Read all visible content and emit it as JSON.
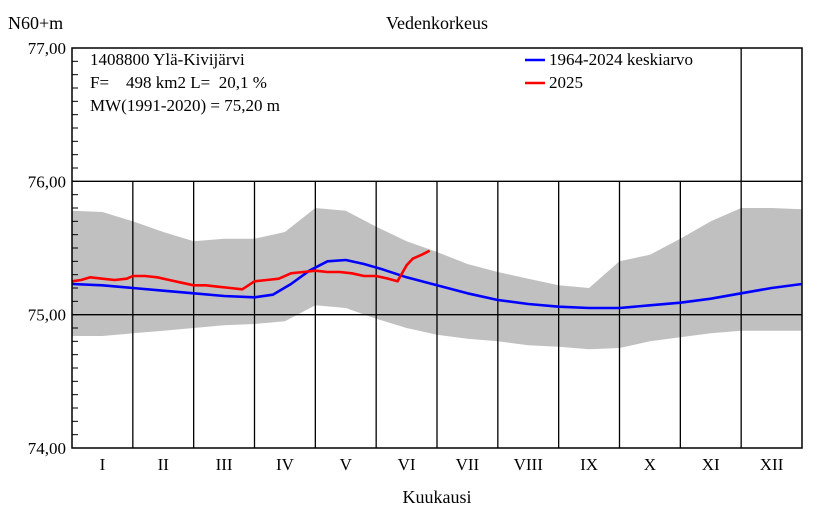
{
  "chart_data": {
    "type": "line",
    "title": "Vedenkorkeus",
    "ylabel": "N60+m",
    "xlabel": "Kuukausi",
    "ylim": [
      74.0,
      77.0
    ],
    "xlim": [
      0,
      12
    ],
    "y_ticks": [
      "74,00",
      "75,00",
      "76,00",
      "77,00"
    ],
    "months": [
      "I",
      "II",
      "III",
      "IV",
      "V",
      "VI",
      "VII",
      "VIII",
      "IX",
      "X",
      "XI",
      "XII"
    ],
    "info": [
      "1408800 Ylä-Kivijärvi",
      "F=    498 km2 L=  20,1 %",
      "MW(1991-2020) = 75,20 m"
    ],
    "legend_position": "top-right",
    "grid": true,
    "band": {
      "x": [
        0,
        0.5,
        1,
        1.5,
        2,
        2.5,
        3,
        3.5,
        4,
        4.5,
        5,
        5.5,
        6,
        6.5,
        7,
        7.5,
        8,
        8.5,
        9,
        9.5,
        10,
        10.5,
        11,
        11.5,
        12
      ],
      "upper": [
        75.78,
        75.77,
        75.7,
        75.62,
        75.55,
        75.57,
        75.57,
        75.62,
        75.8,
        75.78,
        75.66,
        75.55,
        75.47,
        75.38,
        75.32,
        75.27,
        75.22,
        75.2,
        75.4,
        75.45,
        75.57,
        75.7,
        75.8,
        75.8,
        75.79
      ],
      "lower": [
        74.84,
        74.84,
        74.86,
        74.88,
        74.9,
        74.92,
        74.93,
        74.95,
        75.07,
        75.05,
        74.97,
        74.9,
        74.85,
        74.82,
        74.8,
        74.77,
        74.76,
        74.74,
        74.75,
        74.8,
        74.83,
        74.86,
        74.88,
        74.88,
        74.88
      ],
      "color": "#c0c0c0"
    },
    "series": [
      {
        "name": "1964-2024 keskiarvo",
        "color": "#0000ff",
        "x": [
          0,
          0.5,
          1,
          1.5,
          2,
          2.5,
          3,
          3.3,
          3.6,
          3.9,
          4.2,
          4.5,
          4.8,
          5.1,
          5.5,
          6,
          6.5,
          7,
          7.5,
          8,
          8.5,
          9,
          9.5,
          10,
          10.5,
          11,
          11.5,
          12
        ],
        "y": [
          75.23,
          75.22,
          75.2,
          75.18,
          75.16,
          75.14,
          75.13,
          75.15,
          75.23,
          75.33,
          75.4,
          75.41,
          75.38,
          75.34,
          75.28,
          75.22,
          75.16,
          75.11,
          75.08,
          75.06,
          75.05,
          75.05,
          75.07,
          75.09,
          75.12,
          75.16,
          75.2,
          75.23
        ]
      },
      {
        "name": "2025",
        "color": "#ff0000",
        "x": [
          0,
          0.15,
          0.3,
          0.5,
          0.7,
          0.9,
          1.0,
          1.2,
          1.4,
          1.6,
          1.8,
          2.0,
          2.2,
          2.4,
          2.6,
          2.8,
          3.0,
          3.2,
          3.4,
          3.6,
          3.8,
          4.0,
          4.2,
          4.4,
          4.6,
          4.8,
          5.0,
          5.2,
          5.35,
          5.4,
          5.5,
          5.6,
          5.75,
          5.88
        ],
        "y": [
          75.25,
          75.26,
          75.28,
          75.27,
          75.26,
          75.27,
          75.29,
          75.29,
          75.28,
          75.26,
          75.24,
          75.22,
          75.22,
          75.21,
          75.2,
          75.19,
          75.25,
          75.26,
          75.27,
          75.31,
          75.32,
          75.33,
          75.32,
          75.32,
          75.31,
          75.29,
          75.29,
          75.27,
          75.25,
          75.29,
          75.37,
          75.42,
          75.45,
          75.48
        ]
      }
    ]
  }
}
